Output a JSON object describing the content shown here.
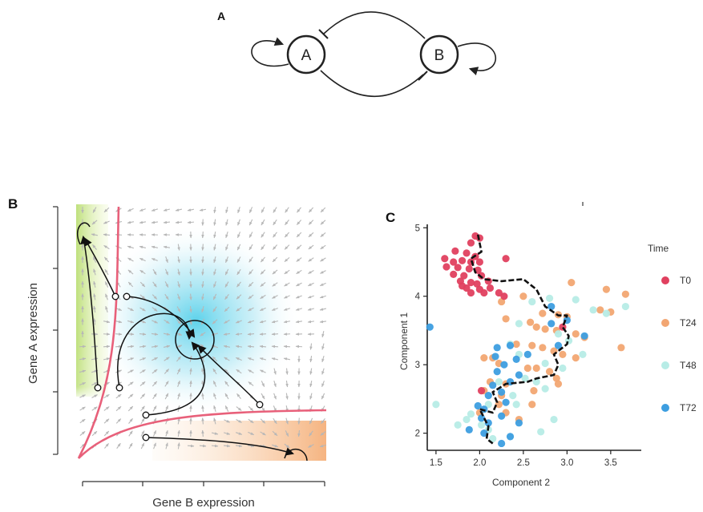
{
  "figure": {
    "panel_a": {
      "label": "A",
      "nodes": [
        {
          "id": "A",
          "label": "A"
        },
        {
          "id": "B",
          "label": "B"
        }
      ]
    },
    "panel_b": {
      "label": "B",
      "xlabel": "Gene B expression",
      "ylabel": "Gene A expression"
    }
  },
  "chart_data": {
    "type": "scatter",
    "panel_label": "C",
    "xlabel": "Component 2",
    "ylabel": "Component 1",
    "xlim": [
      1.4,
      3.85
    ],
    "ylim": [
      1.75,
      5.05
    ],
    "xticks": [
      "1.5",
      "2.0",
      "2.5",
      "3.0",
      "3.5"
    ],
    "yticks": [
      "2",
      "3",
      "4",
      "5"
    ],
    "legend_title": "Time",
    "legend_position": "right",
    "grid": false,
    "colors": {
      "T0": "#e0405f",
      "T24": "#f2a672",
      "T48": "#b7ece6",
      "T72": "#3d9ee0",
      "trajectory": "#111111"
    },
    "series": [
      {
        "name": "T0",
        "points": [
          [
            1.95,
            4.88
          ],
          [
            2.0,
            4.85
          ],
          [
            1.9,
            4.78
          ],
          [
            1.72,
            4.66
          ],
          [
            1.85,
            4.63
          ],
          [
            1.95,
            4.58
          ],
          [
            2.3,
            4.55
          ],
          [
            1.6,
            4.55
          ],
          [
            1.7,
            4.5
          ],
          [
            1.8,
            4.52
          ],
          [
            1.9,
            4.5
          ],
          [
            2.0,
            4.5
          ],
          [
            1.62,
            4.43
          ],
          [
            1.75,
            4.42
          ],
          [
            1.88,
            4.4
          ],
          [
            1.98,
            4.38
          ],
          [
            1.7,
            4.32
          ],
          [
            1.82,
            4.3
          ],
          [
            2.02,
            4.3
          ],
          [
            1.78,
            4.22
          ],
          [
            1.9,
            4.2
          ],
          [
            1.97,
            4.18
          ],
          [
            2.1,
            4.22
          ],
          [
            1.85,
            4.12
          ],
          [
            2.0,
            4.1
          ],
          [
            2.12,
            4.12
          ],
          [
            1.9,
            4.05
          ],
          [
            2.05,
            4.05
          ],
          [
            2.22,
            4.05
          ],
          [
            1.8,
            4.15
          ],
          [
            2.28,
            4.0
          ],
          [
            2.95,
            3.55
          ],
          [
            2.02,
            2.62
          ]
        ]
      },
      {
        "name": "T24",
        "points": [
          [
            3.05,
            4.2
          ],
          [
            3.45,
            4.1
          ],
          [
            3.67,
            4.03
          ],
          [
            2.5,
            4.0
          ],
          [
            2.25,
            3.92
          ],
          [
            3.38,
            3.8
          ],
          [
            3.5,
            3.77
          ],
          [
            2.72,
            3.75
          ],
          [
            2.9,
            3.73
          ],
          [
            3.0,
            3.7
          ],
          [
            2.3,
            3.67
          ],
          [
            2.58,
            3.62
          ],
          [
            2.65,
            3.55
          ],
          [
            2.75,
            3.52
          ],
          [
            2.88,
            3.5
          ],
          [
            3.1,
            3.45
          ],
          [
            3.2,
            3.4
          ],
          [
            3.62,
            3.25
          ],
          [
            2.42,
            3.3
          ],
          [
            2.6,
            3.28
          ],
          [
            2.72,
            3.25
          ],
          [
            2.85,
            3.2
          ],
          [
            2.95,
            3.15
          ],
          [
            2.05,
            3.1
          ],
          [
            2.15,
            3.1
          ],
          [
            3.1,
            3.1
          ],
          [
            2.22,
            3.02
          ],
          [
            2.55,
            2.95
          ],
          [
            2.65,
            2.95
          ],
          [
            2.8,
            2.9
          ],
          [
            2.88,
            2.8
          ],
          [
            2.12,
            2.75
          ],
          [
            2.3,
            2.72
          ],
          [
            2.9,
            2.72
          ],
          [
            2.05,
            2.62
          ],
          [
            2.62,
            2.62
          ],
          [
            2.25,
            2.55
          ],
          [
            2.22,
            2.42
          ],
          [
            2.6,
            2.42
          ],
          [
            2.3,
            2.3
          ],
          [
            2.45,
            2.2
          ],
          [
            2.0,
            2.3
          ]
        ]
      },
      {
        "name": "T48",
        "points": [
          [
            2.8,
            3.97
          ],
          [
            2.6,
            3.92
          ],
          [
            3.1,
            3.95
          ],
          [
            3.3,
            3.8
          ],
          [
            3.45,
            3.75
          ],
          [
            3.67,
            3.85
          ],
          [
            2.45,
            3.6
          ],
          [
            2.9,
            3.45
          ],
          [
            2.35,
            3.3
          ],
          [
            2.45,
            3.15
          ],
          [
            3.18,
            3.15
          ],
          [
            3.02,
            3.35
          ],
          [
            2.75,
            3.02
          ],
          [
            2.95,
            2.95
          ],
          [
            2.52,
            2.8
          ],
          [
            2.65,
            2.75
          ],
          [
            2.22,
            2.75
          ],
          [
            2.75,
            2.65
          ],
          [
            2.38,
            2.55
          ],
          [
            1.5,
            2.42
          ],
          [
            2.1,
            2.42
          ],
          [
            2.42,
            2.42
          ],
          [
            1.9,
            2.28
          ],
          [
            2.85,
            2.2
          ],
          [
            1.75,
            2.12
          ],
          [
            2.02,
            2.12
          ],
          [
            2.1,
            2.05
          ],
          [
            2.7,
            2.02
          ],
          [
            2.35,
            1.95
          ],
          [
            2.15,
            1.92
          ],
          [
            1.85,
            2.2
          ]
        ]
      },
      {
        "name": "T72",
        "points": [
          [
            1.43,
            3.55
          ],
          [
            2.82,
            3.6
          ],
          [
            3.0,
            3.65
          ],
          [
            2.82,
            3.85
          ],
          [
            3.2,
            3.42
          ],
          [
            2.35,
            3.28
          ],
          [
            2.9,
            3.28
          ],
          [
            2.2,
            3.25
          ],
          [
            2.18,
            3.12
          ],
          [
            2.42,
            3.08
          ],
          [
            2.55,
            3.15
          ],
          [
            2.28,
            3.0
          ],
          [
            2.2,
            2.9
          ],
          [
            2.45,
            2.85
          ],
          [
            2.35,
            2.75
          ],
          [
            2.15,
            2.7
          ],
          [
            2.25,
            2.6
          ],
          [
            2.1,
            2.55
          ],
          [
            2.3,
            2.45
          ],
          [
            1.98,
            2.4
          ],
          [
            2.05,
            2.35
          ],
          [
            2.25,
            2.25
          ],
          [
            2.45,
            2.15
          ],
          [
            1.88,
            2.05
          ],
          [
            2.05,
            2.0
          ],
          [
            2.25,
            1.85
          ],
          [
            2.35,
            1.95
          ],
          [
            2.1,
            2.15
          ],
          [
            2.02,
            2.22
          ]
        ]
      }
    ],
    "trajectory": [
      [
        1.98,
        4.9
      ],
      [
        2.02,
        4.65
      ],
      [
        1.9,
        4.55
      ],
      [
        1.95,
        4.35
      ],
      [
        2.05,
        4.25
      ],
      [
        2.25,
        4.22
      ],
      [
        2.5,
        4.25
      ],
      [
        2.65,
        4.1
      ],
      [
        2.75,
        3.85
      ],
      [
        2.9,
        3.72
      ],
      [
        3.0,
        3.72
      ],
      [
        2.95,
        3.55
      ],
      [
        3.02,
        3.42
      ],
      [
        3.0,
        3.3
      ],
      [
        2.85,
        3.15
      ],
      [
        2.9,
        3.0
      ],
      [
        2.85,
        2.85
      ],
      [
        2.65,
        2.8
      ],
      [
        2.55,
        2.75
      ],
      [
        2.3,
        2.72
      ],
      [
        2.15,
        2.6
      ],
      [
        2.2,
        2.45
      ],
      [
        2.15,
        2.3
      ],
      [
        2.0,
        2.35
      ],
      [
        2.1,
        2.1
      ],
      [
        2.08,
        1.92
      ],
      [
        2.15,
        1.85
      ]
    ]
  }
}
